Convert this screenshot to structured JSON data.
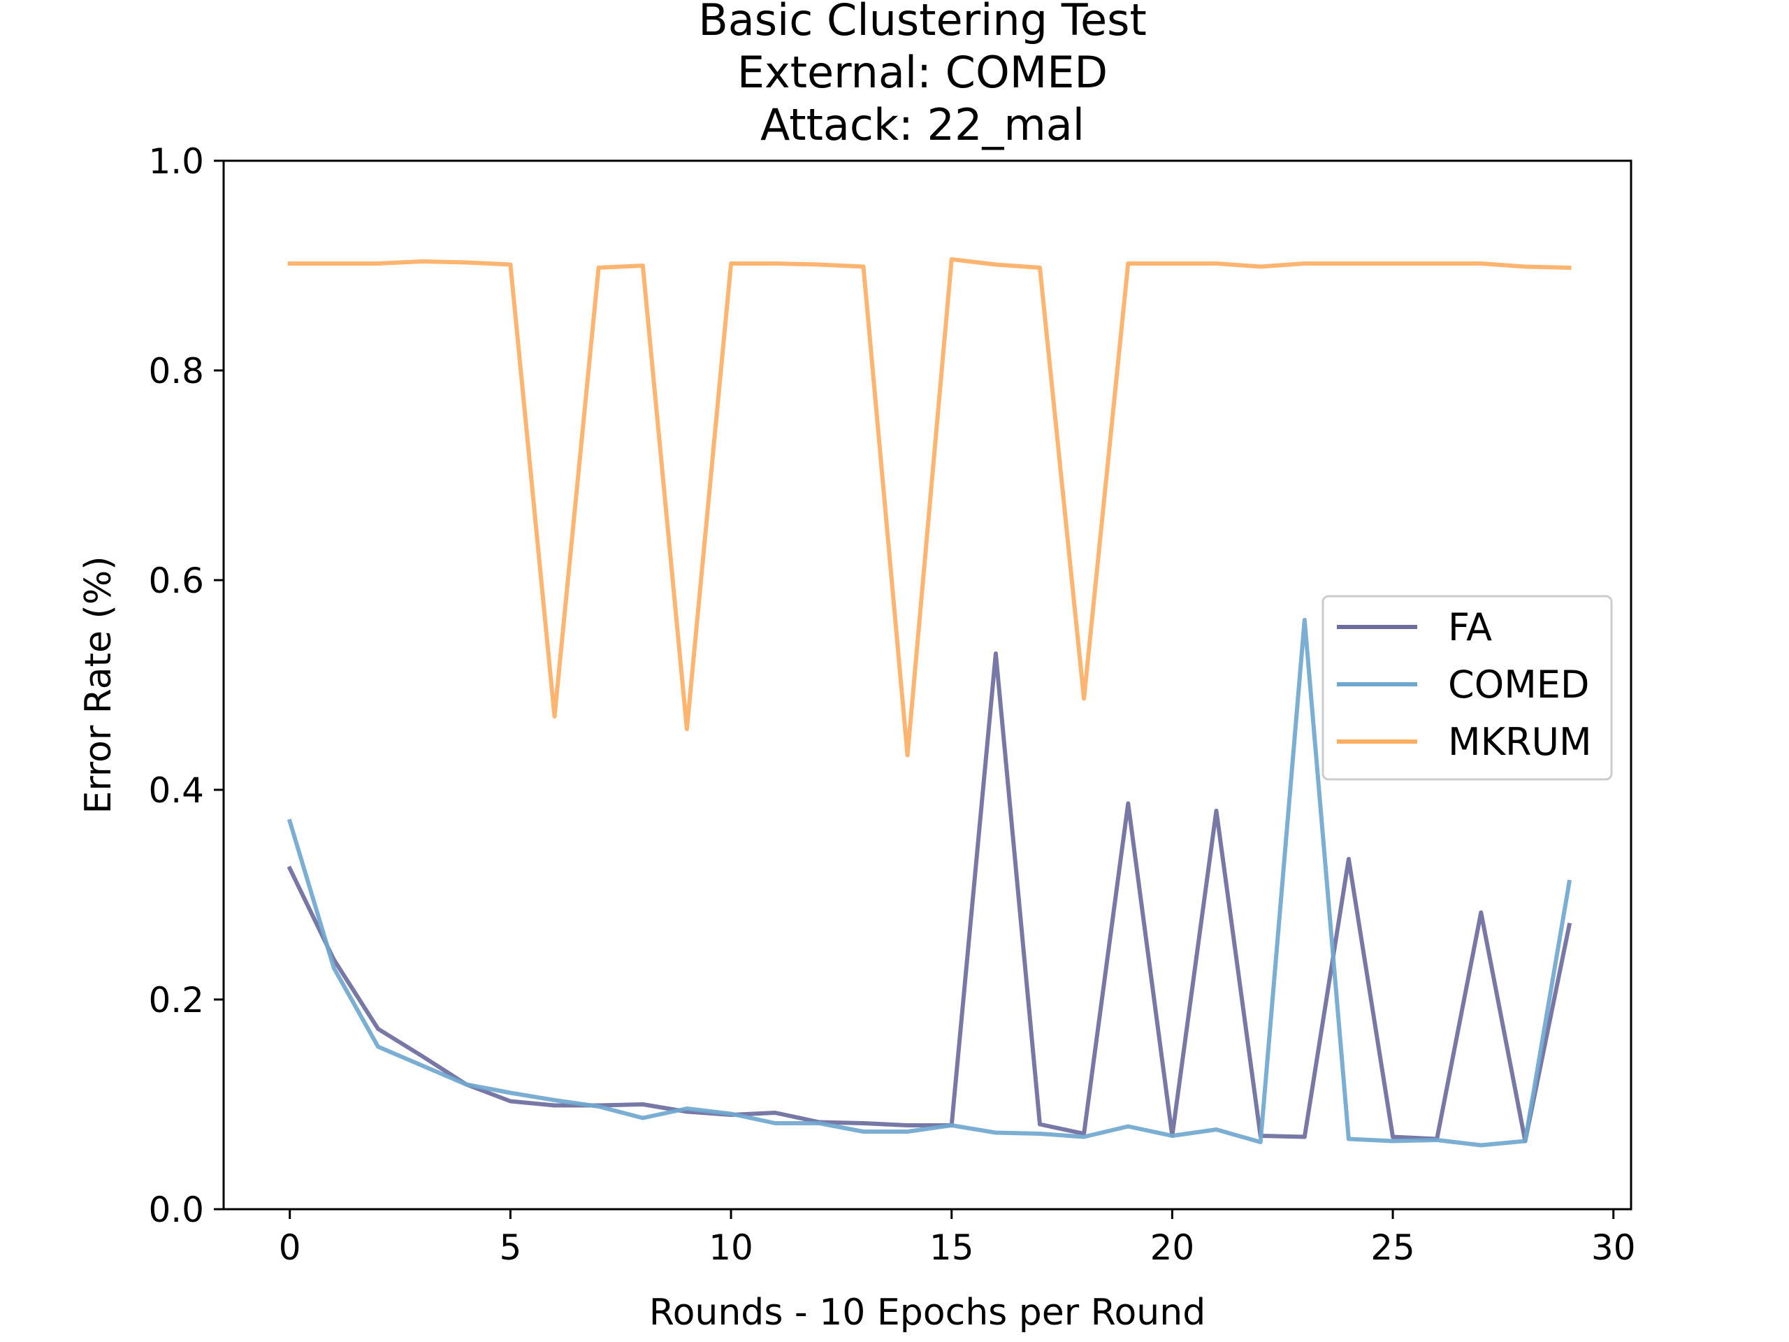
{
  "chart_data": {
    "type": "line",
    "title": [
      "Basic Clustering Test",
      "External: COMED",
      "Attack: 22_mal"
    ],
    "xlabel": "Rounds - 10 Epochs per Round",
    "ylabel": "Error Rate (%)",
    "xlim": [
      -1.5,
      30.4
    ],
    "ylim": [
      0,
      1.0
    ],
    "xticks": [
      0,
      5,
      10,
      15,
      20,
      25,
      30
    ],
    "xtick_labels": [
      "0",
      "5",
      "10",
      "15",
      "20",
      "25",
      "30"
    ],
    "yticks": [
      0,
      0.2,
      0.4,
      0.6,
      0.8,
      1.0
    ],
    "ytick_labels": [
      "0.0",
      "0.2",
      "0.4",
      "0.6",
      "0.8",
      "1.0"
    ],
    "grid": false,
    "legend_position": "center-right",
    "x": [
      0,
      1,
      2,
      3,
      4,
      5,
      6,
      7,
      8,
      9,
      10,
      11,
      12,
      13,
      14,
      15,
      16,
      17,
      18,
      19,
      20,
      21,
      22,
      23,
      24,
      25,
      26,
      27,
      28,
      29
    ],
    "series": [
      {
        "name": "FA",
        "color": "#6c6c9e",
        "values": [
          0.325,
          0.238,
          0.172,
          0.146,
          0.119,
          0.103,
          0.099,
          0.099,
          0.1,
          0.093,
          0.09,
          0.092,
          0.083,
          0.082,
          0.08,
          0.08,
          0.53,
          0.081,
          0.072,
          0.387,
          0.07,
          0.38,
          0.07,
          0.069,
          0.334,
          0.069,
          0.067,
          0.283,
          0.065,
          0.271
        ]
      },
      {
        "name": "COMED",
        "color": "#6fa8cf",
        "values": [
          0.37,
          0.23,
          0.155,
          0.137,
          0.119,
          0.111,
          0.104,
          0.098,
          0.087,
          0.096,
          0.091,
          0.082,
          0.082,
          0.074,
          0.074,
          0.08,
          0.073,
          0.072,
          0.069,
          0.079,
          0.07,
          0.076,
          0.064,
          0.562,
          0.067,
          0.065,
          0.066,
          0.061,
          0.065,
          0.312
        ]
      },
      {
        "name": "MKRUM",
        "color": "#ffae63",
        "values": [
          0.902,
          0.902,
          0.902,
          0.904,
          0.903,
          0.901,
          0.47,
          0.898,
          0.9,
          0.458,
          0.902,
          0.902,
          0.901,
          0.899,
          0.433,
          0.906,
          0.901,
          0.898,
          0.487,
          0.902,
          0.902,
          0.902,
          0.899,
          0.902,
          0.902,
          0.902,
          0.902,
          0.902,
          0.899,
          0.898
        ]
      }
    ]
  }
}
